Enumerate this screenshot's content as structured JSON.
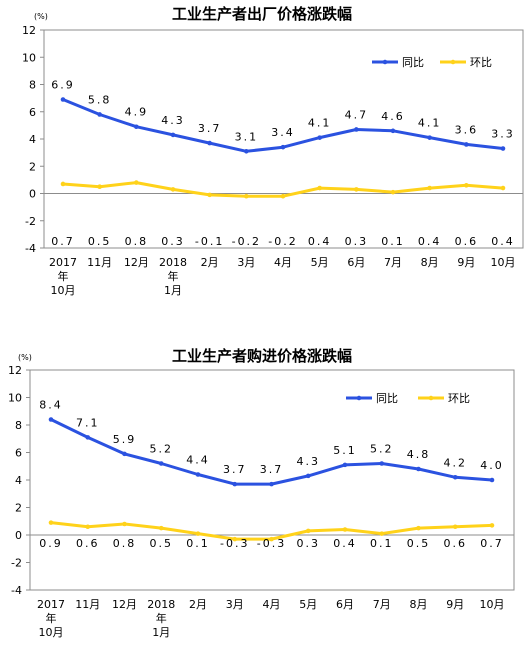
{
  "chart_data": [
    {
      "type": "line",
      "title": "工业生产者出厂价格涨跌幅",
      "unit": "(%)",
      "categories": [
        [
          "2017",
          "年",
          "10月"
        ],
        [
          "11月"
        ],
        [
          "12月"
        ],
        [
          "2018",
          "年",
          "1月"
        ],
        [
          "2月"
        ],
        [
          "3月"
        ],
        [
          "4月"
        ],
        [
          "5月"
        ],
        [
          "6月"
        ],
        [
          "7月"
        ],
        [
          "8月"
        ],
        [
          "9月"
        ],
        [
          "10月"
        ]
      ],
      "series": [
        {
          "name": "同比",
          "color": "#2b52e0",
          "values": [
            6.9,
            5.8,
            4.9,
            4.3,
            3.7,
            3.1,
            3.4,
            4.1,
            4.7,
            4.6,
            4.1,
            3.6,
            3.3
          ]
        },
        {
          "name": "环比",
          "color": "#ffd21a",
          "values": [
            0.7,
            0.5,
            0.8,
            0.3,
            -0.1,
            -0.2,
            -0.2,
            0.4,
            0.3,
            0.1,
            0.4,
            0.6,
            0.4
          ]
        }
      ],
      "ylim": [
        -4,
        12
      ],
      "yticks": [
        -4,
        -2,
        0,
        2,
        4,
        6,
        8,
        10,
        12
      ],
      "grid": false,
      "legend": "top-right",
      "value_labels": {
        "同比": [
          "6.9",
          "5.8",
          "4.9",
          "4.3",
          "3.7",
          "3.1",
          "3.4",
          "4.1",
          "4.7",
          "4.6",
          "4.1",
          "3.6",
          "3.3"
        ],
        "环比": [
          "0.7",
          "0.5",
          "0.8",
          "0.3",
          "-0.1",
          "-0.2",
          "-0.2",
          "0.4",
          "0.3",
          "0.1",
          "0.4",
          "0.6",
          "0.4"
        ]
      }
    },
    {
      "type": "line",
      "title": "工业生产者购进价格涨跌幅",
      "unit": "(%)",
      "categories": [
        [
          "2017",
          "年",
          "10月"
        ],
        [
          "11月"
        ],
        [
          "12月"
        ],
        [
          "2018",
          "年",
          "1月"
        ],
        [
          "2月"
        ],
        [
          "3月"
        ],
        [
          "4月"
        ],
        [
          "5月"
        ],
        [
          "6月"
        ],
        [
          "7月"
        ],
        [
          "8月"
        ],
        [
          "9月"
        ],
        [
          "10月"
        ]
      ],
      "series": [
        {
          "name": "同比",
          "color": "#2b52e0",
          "values": [
            8.4,
            7.1,
            5.9,
            5.2,
            4.4,
            3.7,
            3.7,
            4.3,
            5.1,
            5.2,
            4.8,
            4.2,
            4.0
          ]
        },
        {
          "name": "环比",
          "color": "#ffd21a",
          "values": [
            0.9,
            0.6,
            0.8,
            0.5,
            0.1,
            -0.3,
            -0.3,
            0.3,
            0.4,
            0.1,
            0.5,
            0.6,
            0.7
          ]
        }
      ],
      "ylim": [
        -4,
        12
      ],
      "yticks": [
        -4,
        -2,
        0,
        2,
        4,
        6,
        8,
        10,
        12
      ],
      "grid": false,
      "legend": "top-right",
      "value_labels": {
        "同比": [
          "8.4",
          "7.1",
          "5.9",
          "5.2",
          "4.4",
          "3.7",
          "3.7",
          "4.3",
          "5.1",
          "5.2",
          "4.8",
          "4.2",
          "4.0"
        ],
        "环比": [
          "0.9",
          "0.6",
          "0.8",
          "0.5",
          "0.1",
          "-0.3",
          "-0.3",
          "0.3",
          "0.4",
          "0.1",
          "0.5",
          "0.6",
          "0.7"
        ]
      }
    }
  ]
}
